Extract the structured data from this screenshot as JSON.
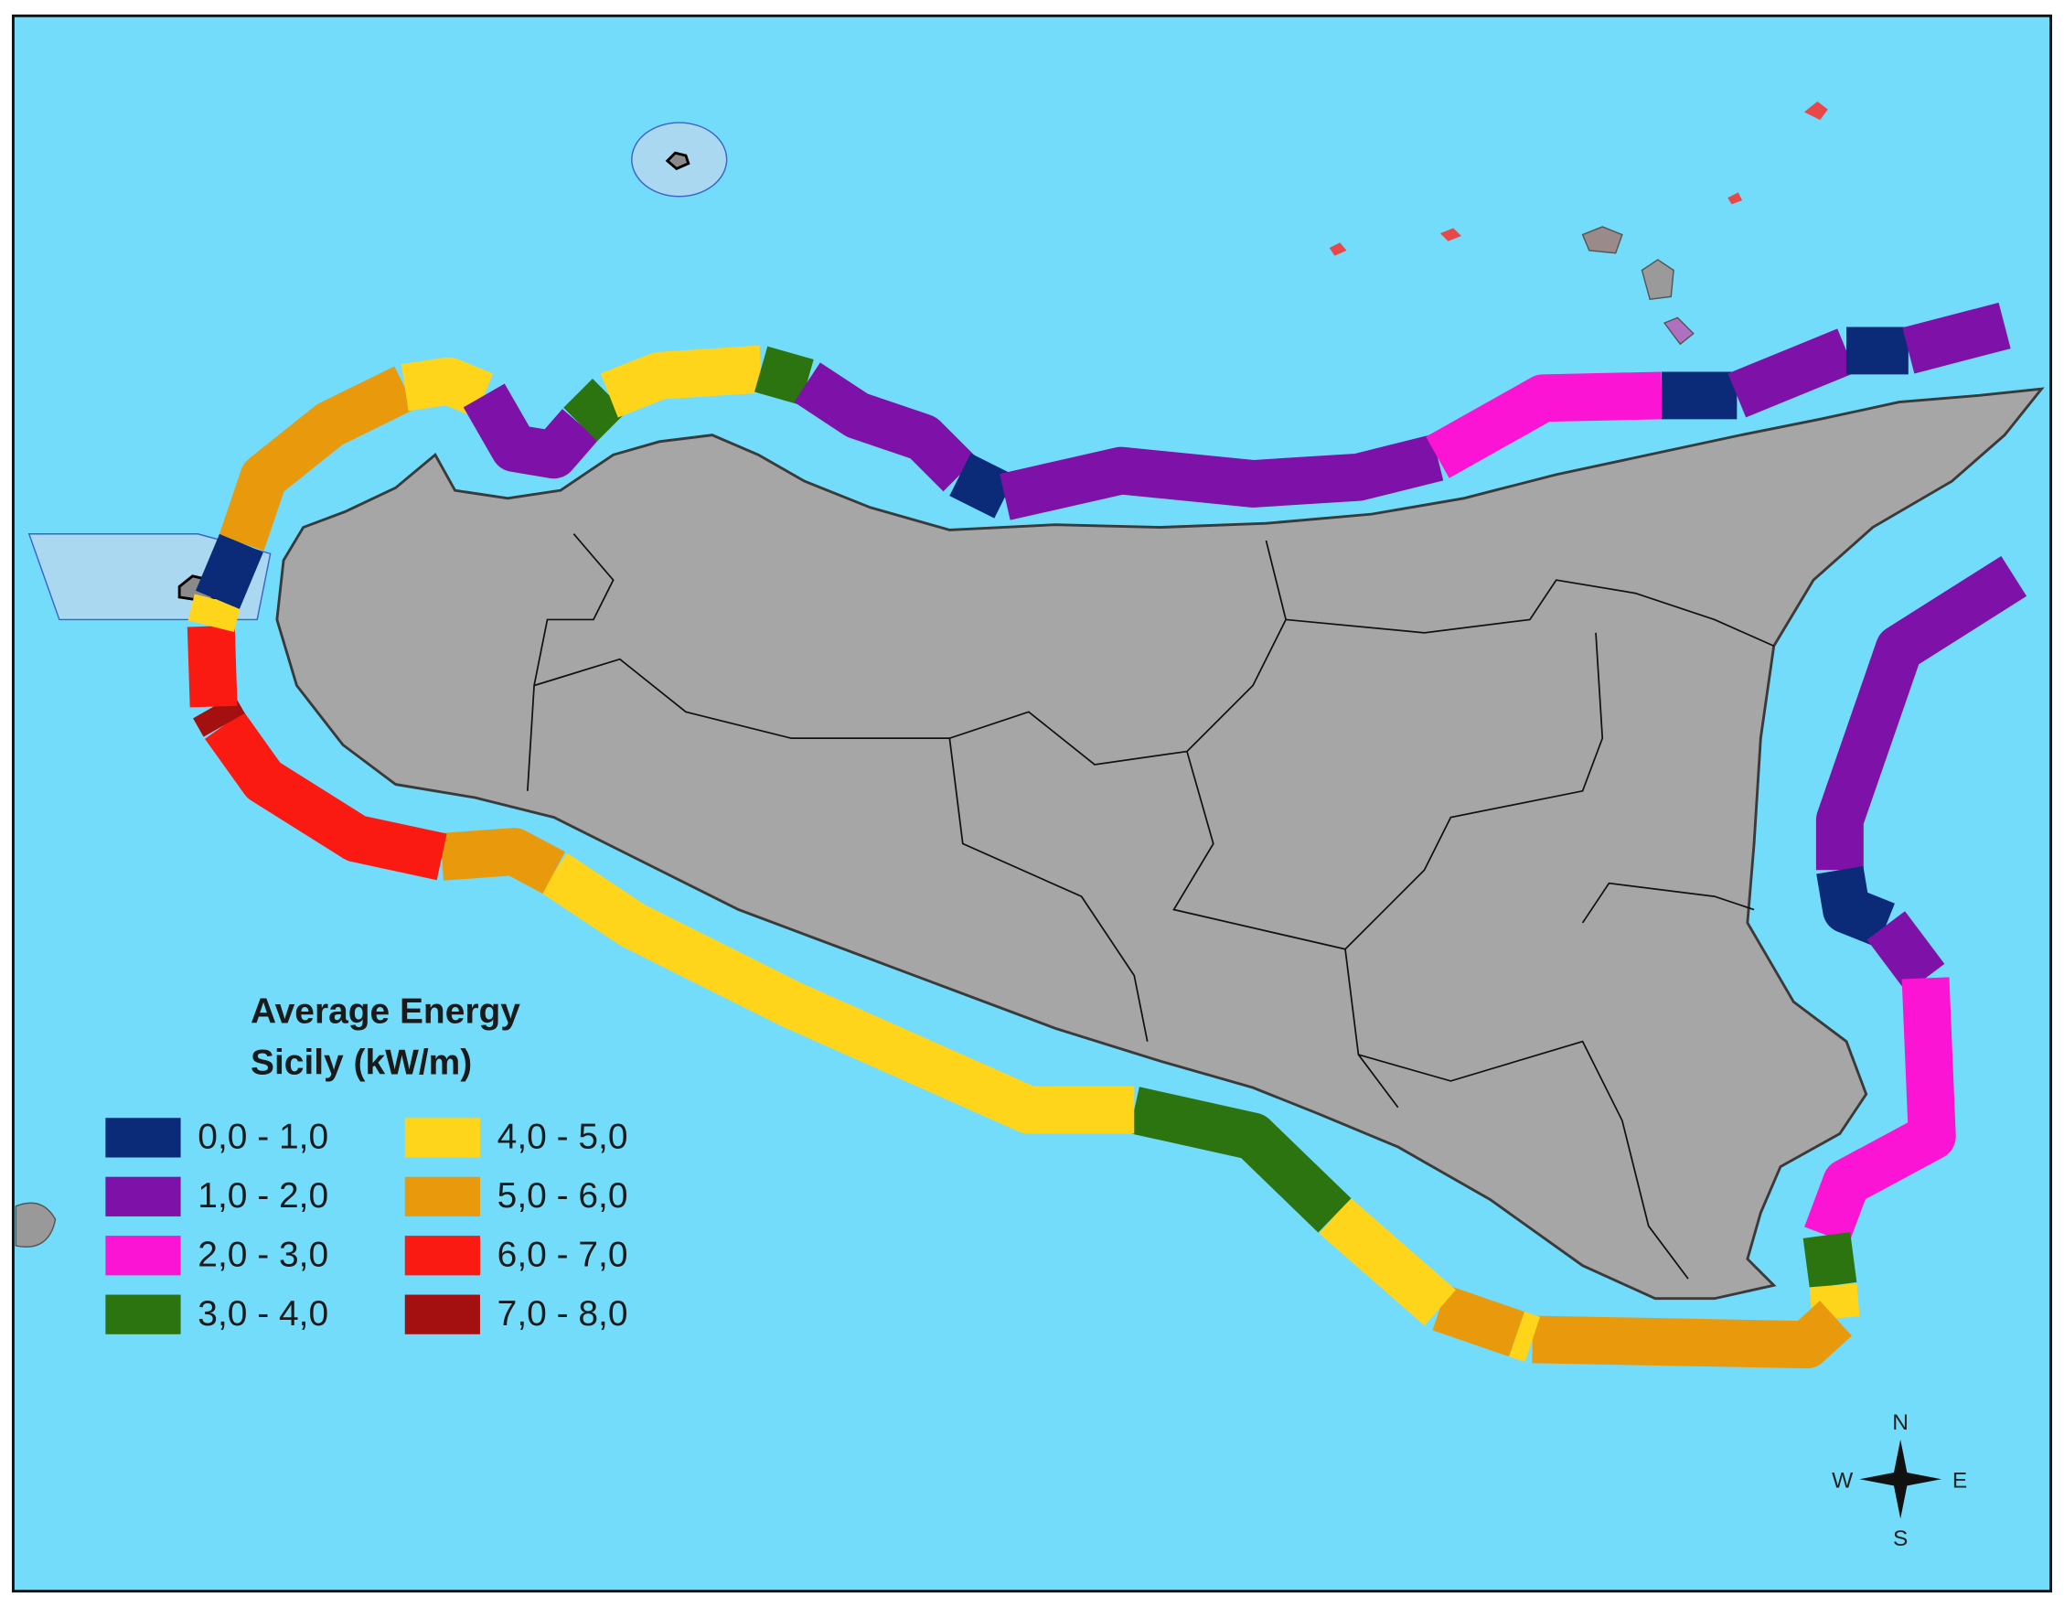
{
  "legend": {
    "title": [
      "Average Energy",
      "Sicily (kW/m)"
    ],
    "items": [
      {
        "label": "0,0 - 1,0",
        "color": "#0b2a78"
      },
      {
        "label": "1,0 - 2,0",
        "color": "#7d11a8"
      },
      {
        "label": "2,0 - 3,0",
        "color": "#fb14d4"
      },
      {
        "label": "3,0 - 4,0",
        "color": "#2b7410"
      },
      {
        "label": "4,0 - 5,0",
        "color": "#ffd51b"
      },
      {
        "label": "5,0 - 6,0",
        "color": "#e89a0c"
      },
      {
        "label": "6,0 - 7,0",
        "color": "#fb1a12"
      },
      {
        "label": "7,0 - 8,0",
        "color": "#a40f0f"
      }
    ]
  },
  "compass": {
    "north": "N",
    "south": "S",
    "west": "W",
    "east": "E"
  }
}
